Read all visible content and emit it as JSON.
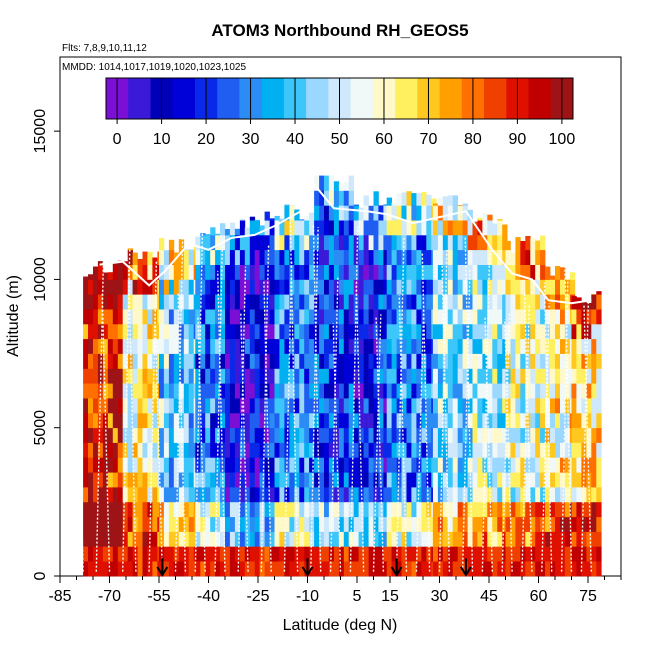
{
  "chart_data": {
    "type": "heatmap",
    "title": "ATOM3 Northbound RH_GEOS5",
    "flights_label": "Flts: 7,8,9,10,11,12",
    "dates_label": "MMDD: 1014,1017,1019,1020,1023,1025",
    "xlabel": "Latitude (deg N)",
    "ylabel": "Altitude (m)",
    "xlim": [
      -85,
      85
    ],
    "ylim": [
      0,
      17500
    ],
    "x_ticks": [
      -85,
      -70,
      -55,
      -40,
      -25,
      -10,
      5,
      15,
      30,
      45,
      60,
      75
    ],
    "y_ticks": [
      0,
      5000,
      10000,
      15000
    ],
    "colorbar": {
      "ticks": [
        0,
        10,
        20,
        30,
        40,
        50,
        60,
        70,
        80,
        90,
        100
      ],
      "range": [
        -2.5,
        102.5
      ],
      "colors": [
        "#7c0fd6",
        "#3a1ad8",
        "#0000b8",
        "#0000d8",
        "#0a28e8",
        "#1f5ef0",
        "#2a8cf4",
        "#00b0f0",
        "#3cc6fa",
        "#9ad8ff",
        "#cfe8fb",
        "#f0f8f8",
        "#fff8c8",
        "#fff060",
        "#ffc820",
        "#ffa000",
        "#ff7000",
        "#f04000",
        "#e01000",
        "#c00000",
        "#9e1416"
      ]
    },
    "latitude_regions": [
      {
        "lat_from": -78,
        "lat_to": -66,
        "rh_mid": 88,
        "top": 10400
      },
      {
        "lat_from": -66,
        "lat_to": -55,
        "rh_mid": 60,
        "top": 10800
      },
      {
        "lat_from": -55,
        "lat_to": -44,
        "rh_mid": 42,
        "top": 11200
      },
      {
        "lat_from": -44,
        "lat_to": -35,
        "rh_mid": 28,
        "top": 11600
      },
      {
        "lat_from": -35,
        "lat_to": -20,
        "rh_mid": 12,
        "top": 12000
      },
      {
        "lat_from": -20,
        "lat_to": -8,
        "rh_mid": 30,
        "top": 12300
      },
      {
        "lat_from": -8,
        "lat_to": 4,
        "rh_mid": 20,
        "top": 13500
      },
      {
        "lat_from": 4,
        "lat_to": 14,
        "rh_mid": 18,
        "top": 12700
      },
      {
        "lat_from": 14,
        "lat_to": 28,
        "rh_mid": 30,
        "top": 12700
      },
      {
        "lat_from": 28,
        "lat_to": 40,
        "rh_mid": 45,
        "top": 12600
      },
      {
        "lat_from": 40,
        "lat_to": 50,
        "rh_mid": 50,
        "top": 12000
      },
      {
        "lat_from": 50,
        "lat_to": 62,
        "rh_mid": 55,
        "top": 11200
      },
      {
        "lat_from": 62,
        "lat_to": 70,
        "rh_mid": 62,
        "top": 10200
      },
      {
        "lat_from": 70,
        "lat_to": 78,
        "rh_mid": 65,
        "top": 9400
      }
    ],
    "flight_marker_latitudes": [
      -54,
      -10,
      17,
      38
    ],
    "tropopause_line": [
      {
        "lat": -73,
        "alt": 10500
      },
      {
        "lat": -66,
        "alt": 10600
      },
      {
        "lat": -58,
        "alt": 9800
      },
      {
        "lat": -53,
        "alt": 10300
      },
      {
        "lat": -46,
        "alt": 11200
      },
      {
        "lat": -40,
        "alt": 11000
      },
      {
        "lat": -33,
        "alt": 11400
      },
      {
        "lat": -26,
        "alt": 11500
      },
      {
        "lat": -20,
        "alt": 11800
      },
      {
        "lat": -12,
        "alt": 12300
      },
      {
        "lat": -8,
        "alt": 13200
      },
      {
        "lat": -2,
        "alt": 12400
      },
      {
        "lat": 8,
        "alt": 12300
      },
      {
        "lat": 14,
        "alt": 12200
      },
      {
        "lat": 22,
        "alt": 11900
      },
      {
        "lat": 30,
        "alt": 12100
      },
      {
        "lat": 38,
        "alt": 12300
      },
      {
        "lat": 46,
        "alt": 11000
      },
      {
        "lat": 52,
        "alt": 10200
      },
      {
        "lat": 58,
        "alt": 10000
      },
      {
        "lat": 63,
        "alt": 9300
      },
      {
        "lat": 70,
        "alt": 9200
      },
      {
        "lat": 76,
        "alt": 9300
      }
    ],
    "profile_latitudes": [
      -78,
      -74,
      -70,
      -66,
      -62,
      -58,
      -54,
      -50,
      -47,
      -44,
      -41,
      -38,
      -35,
      -31,
      -28,
      -24,
      -21,
      -17,
      -13,
      -9,
      -6,
      -3,
      0,
      3,
      7,
      10,
      13,
      17,
      20,
      23,
      27,
      30,
      33,
      37,
      40,
      43,
      46,
      49,
      52,
      55,
      58,
      61,
      64,
      67,
      70,
      73,
      76
    ]
  }
}
